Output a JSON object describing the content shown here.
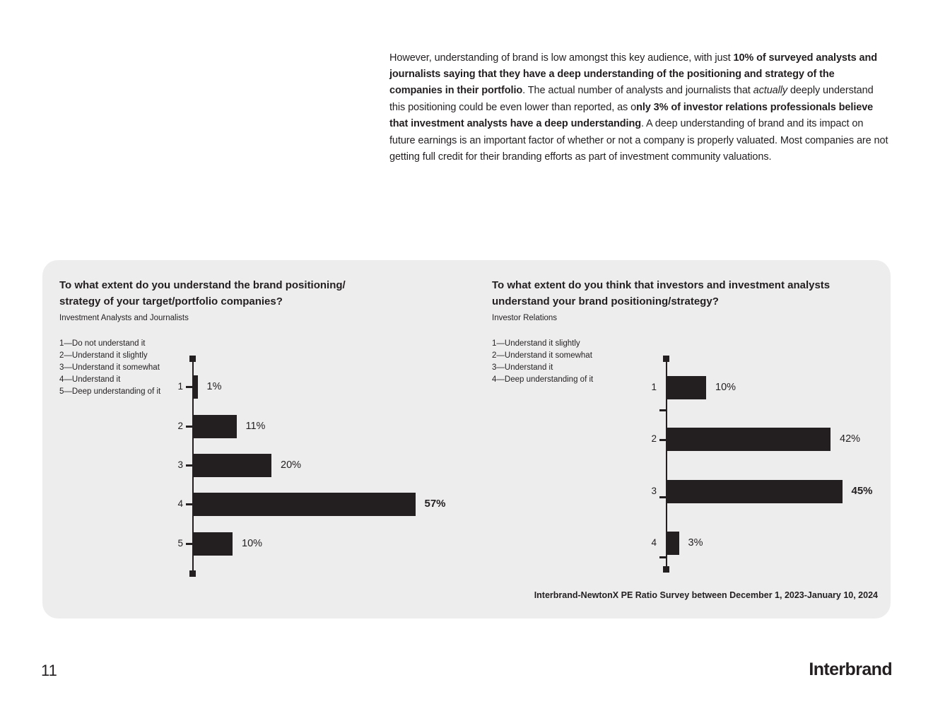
{
  "intro_paragraph": {
    "segments": [
      {
        "text": "However, understanding of brand is low amongst this key audience, with just ",
        "style": "normal"
      },
      {
        "text": "10% of surveyed analysts and journalists saying that they have a deep understanding of the positioning and strategy of the companies in their portfolio",
        "style": "bold"
      },
      {
        "text": ". The actual number of analysts and journalists that ",
        "style": "normal"
      },
      {
        "text": "actually",
        "style": "italic"
      },
      {
        "text": " deeply understand this positioning could be even lower than reported, as o",
        "style": "normal"
      },
      {
        "text": "nly 3% of investor relations professionals believe that investment analysts have a deep understanding",
        "style": "bold"
      },
      {
        "text": ". A deep understanding of brand and its impact on future earnings is an important factor of whether or not a company is properly valuated. Most companies are not getting full credit for their branding efforts as part of investment community valuations.",
        "style": "normal"
      }
    ]
  },
  "panel": {
    "source_note": "Interbrand-NewtonX PE Ratio Survey between December 1, 2023-January 10, 2024"
  },
  "footer": {
    "page_number": "11",
    "logo_text": "Interbrand"
  },
  "colors": {
    "ink": "#231f20",
    "bar": "#231f20",
    "panel_bg": "#ededed",
    "page_bg": "#ffffff"
  },
  "chart_data": [
    {
      "type": "bar",
      "orientation": "horizontal",
      "title_lines": [
        "To what extent do you understand the brand positioning/",
        "strategy of your target/portfolio companies?"
      ],
      "subtitle": "Investment Analysts and Journalists",
      "scale_legend": [
        "1—Do not understand it",
        "2—Understand it slightly",
        "3—Understand it somewhat",
        "4—Understand it",
        "5—Deep understanding of it"
      ],
      "categories": [
        "1",
        "2",
        "3",
        "4",
        "5"
      ],
      "values": [
        1,
        11,
        20,
        57,
        10
      ],
      "value_labels": [
        "1%",
        "11%",
        "20%",
        "57%",
        "10%"
      ],
      "emphasized_category": "4",
      "xlim": [
        0,
        60
      ],
      "grid": false,
      "legend_position": "left of plot"
    },
    {
      "type": "bar",
      "orientation": "horizontal",
      "title_lines": [
        "To what extent do you think that investors and investment analysts",
        "understand your brand positioning/strategy?"
      ],
      "subtitle": "Investor Relations",
      "scale_legend": [
        "1—Understand it slightly",
        "2—Understand it somewhat",
        "3—Understand it",
        "4—Deep understanding of it"
      ],
      "categories": [
        "1",
        "2",
        "3",
        "4"
      ],
      "values": [
        10,
        42,
        45,
        3
      ],
      "value_labels": [
        "10%",
        "42%",
        "45%",
        "3%"
      ],
      "emphasized_category": "3",
      "xlim": [
        0,
        60
      ],
      "grid": false,
      "legend_position": "left of plot"
    }
  ]
}
